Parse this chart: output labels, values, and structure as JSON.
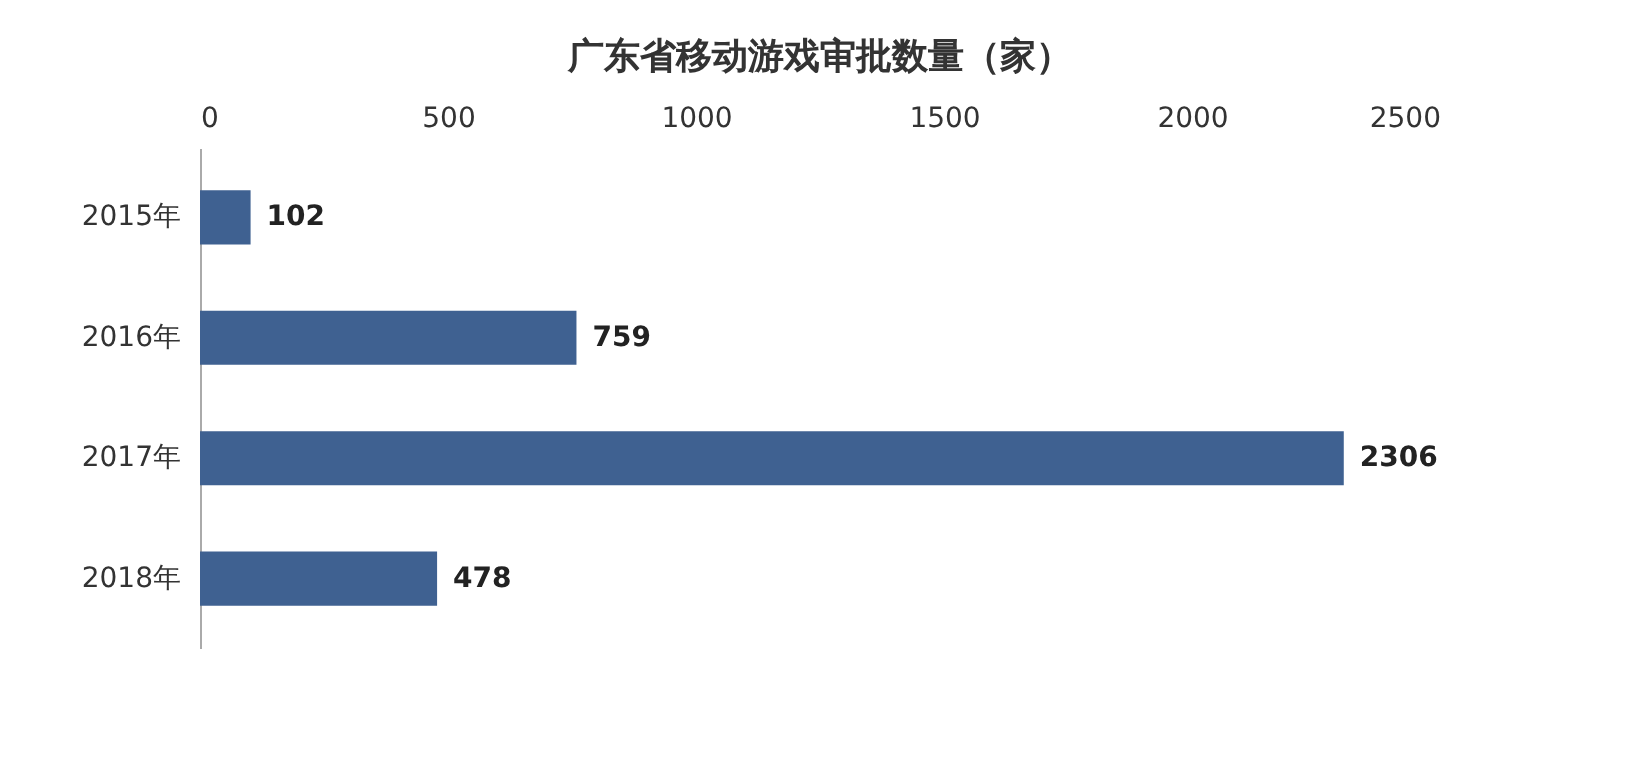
{
  "chart_data": {
    "type": "bar",
    "orientation": "horizontal",
    "title": "广东省移动游戏审批数量（家）",
    "categories": [
      "2015年",
      "2016年",
      "2017年",
      "2018年"
    ],
    "values": [
      102,
      759,
      2306,
      478
    ],
    "color": "#3f6191",
    "xlim": [
      0,
      2500
    ],
    "xticks": [
      0,
      500,
      1000,
      1500,
      2000,
      2500
    ],
    "data_labels": true
  }
}
